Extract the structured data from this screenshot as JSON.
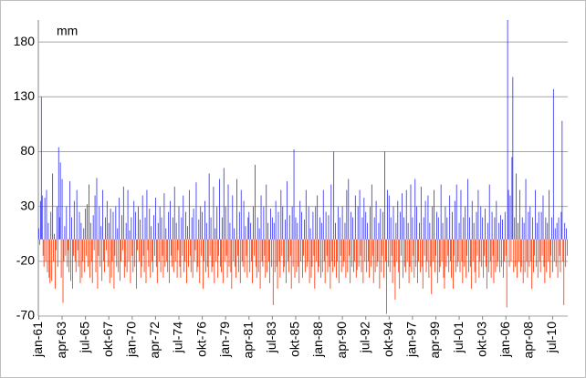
{
  "chart_data": {
    "type": "bar",
    "unit_label": "mm",
    "ylim": [
      -70,
      200
    ],
    "yticks": [
      -70,
      -20,
      30,
      80,
      130,
      180
    ],
    "grid": true,
    "positive_color": "#3a3af2",
    "negative_color": "#ff3a0a",
    "categories": [
      "jan-61",
      null,
      null,
      null,
      null,
      null,
      null,
      null,
      null,
      null,
      null,
      null,
      null,
      null,
      null,
      null,
      null,
      null,
      null,
      null,
      null,
      null,
      null,
      null,
      null,
      null,
      null,
      "apr-63",
      null,
      null,
      null,
      null,
      null,
      null,
      null,
      null,
      null,
      null,
      null,
      null,
      null,
      null,
      null,
      null,
      null,
      null,
      null,
      null,
      null,
      null,
      null,
      null,
      null,
      null,
      "jul-65",
      null,
      null,
      null,
      null,
      null,
      null,
      null,
      null,
      null,
      null,
      null,
      null,
      null,
      null,
      null,
      null,
      null,
      null,
      null,
      null,
      null,
      null,
      null,
      null,
      null,
      null,
      "okt-67",
      null,
      null,
      null,
      null,
      null,
      null,
      null,
      null,
      null,
      null,
      null,
      null,
      null,
      null,
      null,
      null,
      null,
      null,
      null,
      null,
      null,
      null,
      null,
      null,
      null,
      null,
      "jan-70",
      null,
      null,
      null,
      null,
      null,
      null,
      null,
      null,
      null,
      null,
      null,
      null,
      null,
      null,
      null,
      null,
      null,
      null,
      null,
      null,
      null,
      null,
      null,
      null,
      null,
      null,
      "apr-72",
      null,
      null,
      null,
      null,
      null,
      null,
      null,
      null,
      null,
      null,
      null,
      null,
      null,
      null,
      null,
      null,
      null,
      null,
      null,
      null,
      null,
      null,
      null,
      null,
      null,
      null,
      "jul-74",
      null,
      null,
      null,
      null,
      null,
      null,
      null,
      null,
      null,
      null,
      null,
      null,
      null,
      null,
      null,
      null,
      null,
      null,
      null,
      null,
      null,
      null,
      null,
      null,
      null,
      null,
      "okt-76",
      null,
      null,
      null,
      null,
      null,
      null,
      null,
      null,
      null,
      null,
      null,
      null,
      null,
      null,
      null,
      null,
      null,
      null,
      null,
      null,
      null,
      null,
      null,
      null,
      null,
      null,
      "jan-79",
      null,
      null,
      null,
      null,
      null,
      null,
      null,
      null,
      null,
      null,
      null,
      null,
      null,
      null,
      null,
      null,
      null,
      null,
      null,
      null,
      null,
      null,
      null,
      null,
      null,
      null,
      "apr-81",
      null,
      null,
      null,
      null,
      null,
      null,
      null,
      null,
      null,
      null,
      null,
      null,
      null,
      null,
      null,
      null,
      null,
      null,
      null,
      null,
      null,
      null,
      null,
      null,
      null,
      null,
      "jul-83",
      null,
      null,
      null,
      null,
      null,
      null,
      null,
      null,
      null,
      null,
      null,
      null,
      null,
      null,
      null,
      null,
      null,
      null,
      null,
      null,
      null,
      null,
      null,
      null,
      null,
      null,
      "okt-85",
      null,
      null,
      null,
      null,
      null,
      null,
      null,
      null,
      null,
      null,
      null,
      null,
      null,
      null,
      null,
      null,
      null,
      null,
      null,
      null,
      null,
      null,
      null,
      null,
      null,
      null,
      "jan-88",
      null,
      null,
      null,
      null,
      null,
      null,
      null,
      null,
      null,
      null,
      null,
      null,
      null,
      null,
      null,
      null,
      null,
      null,
      null,
      null,
      null,
      null,
      null,
      null,
      null,
      null,
      "apr-90",
      null,
      null,
      null,
      null,
      null,
      null,
      null,
      null,
      null,
      null,
      null,
      null,
      null,
      null,
      null,
      null,
      null,
      null,
      null,
      null,
      null,
      null,
      null,
      null,
      null,
      null,
      "jul-92",
      null,
      null,
      null,
      null,
      null,
      null,
      null,
      null,
      null,
      null,
      null,
      null,
      null,
      null,
      null,
      null,
      null,
      null,
      null,
      null,
      null,
      null,
      null,
      null,
      null,
      null,
      "okt-94",
      null,
      null,
      null,
      null,
      null,
      null,
      null,
      null,
      null,
      null,
      null,
      null,
      null,
      null,
      null,
      null,
      null,
      null,
      null,
      null,
      null,
      null,
      null,
      null,
      null,
      null,
      "jan-97",
      null,
      null,
      null,
      null,
      null,
      null,
      null,
      null,
      null,
      null,
      null,
      null,
      null,
      null,
      null,
      null,
      null,
      null,
      null,
      null,
      null,
      null,
      null,
      null,
      null,
      null,
      "apr-99",
      null,
      null,
      null,
      null,
      null,
      null,
      null,
      null,
      null,
      null,
      null,
      null,
      null,
      null,
      null,
      null,
      null,
      null,
      null,
      null,
      null,
      null,
      null,
      null,
      null,
      null,
      "jul-01",
      null,
      null,
      null,
      null,
      null,
      null,
      null,
      null,
      null,
      null,
      null,
      null,
      null,
      null,
      null,
      null,
      null,
      null,
      null,
      null,
      null,
      null,
      null,
      null,
      null,
      null,
      "okt-03",
      null,
      null,
      null,
      null,
      null,
      null,
      null,
      null,
      null,
      null,
      null,
      null,
      null,
      null,
      null,
      null,
      null,
      null,
      null,
      null,
      null,
      null,
      null,
      null,
      null,
      null,
      "jan-06",
      null,
      null,
      null,
      null,
      null,
      null,
      null,
      null,
      null,
      null,
      null,
      null,
      null,
      null,
      null,
      null,
      null,
      null,
      null,
      null,
      null,
      null,
      null,
      null,
      null,
      null,
      "apr-08",
      null,
      null,
      null,
      null,
      null,
      null,
      null,
      null,
      null,
      null,
      null,
      null,
      null,
      null,
      null,
      null,
      null,
      null,
      null,
      null,
      null,
      null,
      null,
      null,
      null,
      null,
      "jul-10",
      null,
      null,
      null,
      null,
      null,
      null,
      null,
      null,
      null,
      null,
      null,
      null,
      null,
      null,
      null,
      null,
      null
    ],
    "values": [
      10,
      -5,
      35,
      130,
      40,
      -15,
      -25,
      38,
      -20,
      45,
      -30,
      15,
      -35,
      -40,
      25,
      -38,
      60,
      -20,
      5,
      -45,
      -10,
      30,
      -25,
      84,
      20,
      70,
      -35,
      55,
      -58,
      -20,
      12,
      -15,
      30,
      -25,
      -10,
      -30,
      53,
      -38,
      20,
      -45,
      -15,
      35,
      -20,
      -30,
      45,
      -10,
      -25,
      25,
      -40,
      15,
      -35,
      -20,
      10,
      -30,
      28,
      -15,
      32,
      -25,
      50,
      -35,
      15,
      -20,
      -40,
      22,
      -10,
      40,
      -30,
      56,
      -45,
      -15,
      30,
      -25,
      12,
      -38,
      45,
      -20,
      -30,
      20,
      -10,
      35,
      -25,
      15,
      -40,
      28,
      -35,
      -20,
      25,
      -45,
      -15,
      30,
      -25,
      10,
      -30,
      38,
      -38,
      -20,
      22,
      -10,
      48,
      -35,
      -25,
      15,
      -30,
      45,
      -20,
      8,
      -40,
      20,
      -15,
      -30,
      35,
      -25,
      25,
      -45,
      -10,
      30,
      -20,
      18,
      -35,
      -25,
      40,
      -15,
      -30,
      20,
      -40,
      45,
      -10,
      -25,
      28,
      -35,
      12,
      -20,
      -30,
      22,
      -15,
      38,
      -25,
      -40,
      15,
      -20,
      30,
      -30,
      20,
      -15,
      -35,
      42,
      -25,
      10,
      -20,
      -30,
      25,
      -40,
      35,
      -15,
      -25,
      20,
      -30,
      48,
      -20,
      15,
      -35,
      -10,
      30,
      -25,
      -35,
      20,
      -15,
      40,
      -30,
      -20,
      25,
      -40,
      12,
      -25,
      45,
      -15,
      -30,
      20,
      -35,
      28,
      -20,
      -10,
      52,
      -30,
      -25,
      18,
      -40,
      30,
      -15,
      25,
      -45,
      -20,
      35,
      -30,
      15,
      -25,
      -35,
      60,
      -15,
      20,
      -30,
      -25,
      48,
      -40,
      10,
      -20,
      30,
      -35,
      -15,
      55,
      -25,
      -30,
      20,
      -40,
      65,
      -20,
      30,
      -15,
      -35,
      50,
      -25,
      15,
      -30,
      -45,
      40,
      -20,
      10,
      -25,
      -35,
      55,
      -15,
      -30,
      25,
      -40,
      45,
      -20,
      -25,
      35,
      -30,
      12,
      -15,
      -35,
      20,
      25,
      -30,
      15,
      -20,
      -40,
      30,
      -15,
      68,
      -25,
      -35,
      20,
      -30,
      10,
      -45,
      40,
      -20,
      -25,
      30,
      -15,
      -35,
      50,
      -30,
      15,
      -20,
      -40,
      28,
      -25,
      20,
      -60,
      15,
      -30,
      35,
      -25,
      -45,
      25,
      -20,
      -35,
      45,
      -15,
      30,
      -30,
      -25,
      18,
      -40,
      53,
      -20,
      -30,
      22,
      -15,
      -45,
      30,
      -25,
      82,
      -35,
      20,
      -30,
      15,
      -25,
      -40,
      35,
      -20,
      25,
      -35,
      -15,
      18,
      -30,
      45,
      -25,
      -20,
      30,
      -40,
      10,
      -35,
      -25,
      25,
      -15,
      -45,
      30,
      -20,
      40,
      -30,
      -25,
      20,
      -35,
      15,
      -30,
      45,
      -20,
      -40,
      25,
      -15,
      -30,
      22,
      -25,
      -45,
      50,
      -20,
      -30,
      80,
      -25,
      15,
      -35,
      -20,
      30,
      -40,
      20,
      -15,
      -30,
      30,
      -25,
      -20,
      15,
      -35,
      45,
      -30,
      55,
      -15,
      -40,
      25,
      -25,
      20,
      -30,
      -20,
      40,
      -35,
      -28,
      30,
      -25,
      45,
      -15,
      -30,
      20,
      -40,
      38,
      -20,
      25,
      -30,
      15,
      -20,
      -35,
      30,
      -25,
      50,
      -15,
      -40,
      20,
      -30,
      35,
      -25,
      -20,
      15,
      -45,
      28,
      -30,
      -15,
      25,
      -35,
      80,
      -20,
      -68,
      45,
      -25,
      40,
      -30,
      20,
      -15,
      -40,
      30,
      -25,
      -55,
      15,
      -20,
      35,
      -30,
      -45,
      25,
      -15,
      42,
      -35,
      20,
      -25,
      -30,
      45,
      -20,
      15,
      -40,
      -25,
      50,
      -30,
      20,
      -15,
      -35,
      55,
      -25,
      30,
      -40,
      -20,
      15,
      -30,
      48,
      -25,
      -45,
      20,
      -15,
      35,
      -30,
      -20,
      40,
      -35,
      15,
      -25,
      -50,
      30,
      -20,
      45,
      -30,
      -15,
      25,
      -40,
      20,
      -30,
      -25,
      50,
      -20,
      15,
      -35,
      -45,
      30,
      -25,
      20,
      -15,
      -30,
      40,
      -20,
      -35,
      25,
      -45,
      -15,
      35,
      -30,
      50,
      -25,
      -20,
      15,
      -30,
      45,
      -20,
      -40,
      20,
      -25,
      30,
      -35,
      -15,
      55,
      -30,
      20,
      -25,
      -45,
      35,
      -20,
      15,
      -30,
      -40,
      25,
      -15,
      45,
      -35,
      -20,
      30,
      -25,
      20,
      -35,
      -15,
      28,
      -25,
      -45,
      15,
      -30,
      50,
      -20,
      -35,
      25,
      -15,
      -40,
      20,
      -30,
      35,
      -25,
      -20,
      15,
      -30,
      22,
      -25,
      18,
      -35,
      -20,
      25,
      -15,
      -62,
      200,
      45,
      -25,
      40,
      -20,
      75,
      148,
      -30,
      20,
      -25,
      60,
      -35,
      15,
      -20,
      45,
      -30,
      -25,
      20,
      -40,
      15,
      -30,
      55,
      -20,
      -35,
      25,
      -25,
      30,
      -20,
      -45,
      20,
      -30,
      -15,
      45,
      -25,
      15,
      -35,
      25,
      -20,
      -30,
      25,
      -15,
      40,
      -25,
      -40,
      20,
      -30,
      15,
      -20,
      45,
      -35,
      -15,
      20,
      -30,
      137,
      -20,
      10,
      -25,
      15,
      -35,
      20,
      -15,
      -30,
      25,
      108,
      -20,
      -60,
      15,
      -25,
      10,
      -15
    ]
  }
}
